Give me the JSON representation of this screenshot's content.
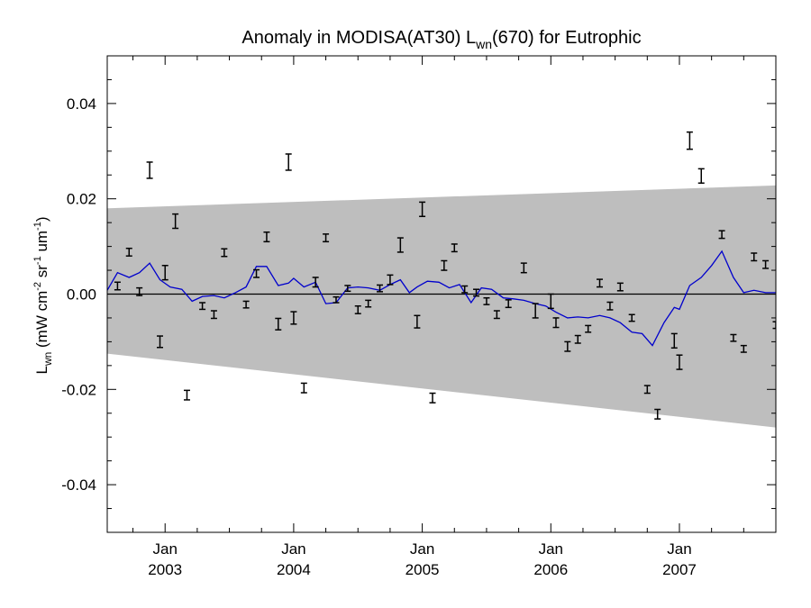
{
  "chart_data": {
    "type": "scatter",
    "title": {
      "prefix": "Anomaly in MODISA(AT30) L",
      "sub": "wn",
      "suffix": "(670) for Eutrophic"
    },
    "ylabel": {
      "main": "L",
      "sub": "wn",
      "units_open": " (mW cm",
      "sup1": "-2",
      "units_mid": " sr",
      "sup2": "-1",
      "units_mid2": " um",
      "sup3": "-1",
      "units_close": ")"
    },
    "xlim": [
      2002.55,
      2007.75
    ],
    "ylim": [
      -0.05,
      0.05
    ],
    "grid": false,
    "y_ticks": [
      {
        "value": -0.04,
        "label": "-0.04"
      },
      {
        "value": -0.02,
        "label": "-0.02"
      },
      {
        "value": 0.0,
        "label": "0.00"
      },
      {
        "value": 0.02,
        "label": "0.02"
      },
      {
        "value": 0.04,
        "label": "0.04"
      }
    ],
    "x_ticks": [
      {
        "value": 2003.0,
        "month": "Jan",
        "year": "2003"
      },
      {
        "value": 2004.0,
        "month": "Jan",
        "year": "2004"
      },
      {
        "value": 2005.0,
        "month": "Jan",
        "year": "2005"
      },
      {
        "value": 2006.0,
        "month": "Jan",
        "year": "2006"
      },
      {
        "value": 2007.0,
        "month": "Jan",
        "year": "2007"
      }
    ],
    "band": {
      "fill": "#bebebe",
      "upper": [
        [
          2002.55,
          0.018
        ],
        [
          2007.75,
          0.0228
        ]
      ],
      "lower": [
        [
          2002.55,
          -0.0125
        ],
        [
          2007.75,
          -0.028
        ]
      ]
    },
    "zero_line": 0.0,
    "line_color": "#0000cc",
    "errorbar_color": "#000000",
    "smoothed": [
      [
        2002.55,
        0.0008
      ],
      [
        2002.63,
        0.0045
      ],
      [
        2002.72,
        0.0035
      ],
      [
        2002.8,
        0.0045
      ],
      [
        2002.88,
        0.0065
      ],
      [
        2002.96,
        0.003
      ],
      [
        2003.04,
        0.0015
      ],
      [
        2003.13,
        0.001
      ],
      [
        2003.21,
        -0.0015
      ],
      [
        2003.29,
        -0.0005
      ],
      [
        2003.38,
        -0.0003
      ],
      [
        2003.46,
        -0.0008
      ],
      [
        2003.54,
        0.0002
      ],
      [
        2003.63,
        0.0015
      ],
      [
        2003.71,
        0.0058
      ],
      [
        2003.79,
        0.0058
      ],
      [
        2003.88,
        0.0018
      ],
      [
        2003.96,
        0.0023
      ],
      [
        2004.0,
        0.0033
      ],
      [
        2004.08,
        0.0015
      ],
      [
        2004.17,
        0.0025
      ],
      [
        2004.25,
        -0.002
      ],
      [
        2004.33,
        -0.0018
      ],
      [
        2004.42,
        0.0013
      ],
      [
        2004.5,
        0.0015
      ],
      [
        2004.58,
        0.0013
      ],
      [
        2004.67,
        0.0008
      ],
      [
        2004.75,
        0.002
      ],
      [
        2004.83,
        0.003
      ],
      [
        2004.9,
        0.0003
      ],
      [
        2004.96,
        0.0015
      ],
      [
        2005.04,
        0.0027
      ],
      [
        2005.13,
        0.0025
      ],
      [
        2005.21,
        0.0013
      ],
      [
        2005.29,
        0.002
      ],
      [
        2005.38,
        -0.0018
      ],
      [
        2005.46,
        0.0013
      ],
      [
        2005.54,
        0.001
      ],
      [
        2005.63,
        -0.0008
      ],
      [
        2005.71,
        -0.001
      ],
      [
        2005.79,
        -0.0013
      ],
      [
        2005.88,
        -0.002
      ],
      [
        2005.96,
        -0.0025
      ],
      [
        2006.04,
        -0.0038
      ],
      [
        2006.13,
        -0.005
      ],
      [
        2006.21,
        -0.0048
      ],
      [
        2006.29,
        -0.005
      ],
      [
        2006.38,
        -0.0045
      ],
      [
        2006.46,
        -0.005
      ],
      [
        2006.54,
        -0.006
      ],
      [
        2006.63,
        -0.008
      ],
      [
        2006.71,
        -0.0083
      ],
      [
        2006.79,
        -0.0108
      ],
      [
        2006.88,
        -0.006
      ],
      [
        2006.96,
        -0.0028
      ],
      [
        2007.0,
        -0.0032
      ],
      [
        2007.08,
        0.0018
      ],
      [
        2007.17,
        0.0035
      ],
      [
        2007.25,
        0.006
      ],
      [
        2007.33,
        0.009
      ],
      [
        2007.42,
        0.0035
      ],
      [
        2007.5,
        0.0003
      ],
      [
        2007.58,
        0.0008
      ],
      [
        2007.67,
        0.0003
      ],
      [
        2007.75,
        0.0003
      ]
    ],
    "errorbars": [
      {
        "x": 2002.63,
        "y": 0.0017,
        "err": 0.0008
      },
      {
        "x": 2002.72,
        "y": 0.0088,
        "err": 0.0008
      },
      {
        "x": 2002.8,
        "y": 0.0005,
        "err": 0.0008
      },
      {
        "x": 2002.88,
        "y": 0.026,
        "err": 0.0017
      },
      {
        "x": 2002.96,
        "y": -0.01,
        "err": 0.0012
      },
      {
        "x": 2003.0,
        "y": 0.0045,
        "err": 0.0015
      },
      {
        "x": 2003.08,
        "y": 0.0153,
        "err": 0.0015
      },
      {
        "x": 2003.17,
        "y": -0.0212,
        "err": 0.001
      },
      {
        "x": 2003.29,
        "y": -0.0025,
        "err": 0.0007
      },
      {
        "x": 2003.38,
        "y": -0.0043,
        "err": 0.0008
      },
      {
        "x": 2003.46,
        "y": 0.0087,
        "err": 0.0008
      },
      {
        "x": 2003.63,
        "y": -0.0022,
        "err": 0.0007
      },
      {
        "x": 2003.71,
        "y": 0.0043,
        "err": 0.0008
      },
      {
        "x": 2003.79,
        "y": 0.012,
        "err": 0.001
      },
      {
        "x": 2003.88,
        "y": -0.0063,
        "err": 0.0012
      },
      {
        "x": 2003.96,
        "y": 0.0277,
        "err": 0.0017
      },
      {
        "x": 2004.0,
        "y": -0.005,
        "err": 0.0013
      },
      {
        "x": 2004.08,
        "y": -0.0197,
        "err": 0.001
      },
      {
        "x": 2004.17,
        "y": 0.0025,
        "err": 0.001
      },
      {
        "x": 2004.25,
        "y": 0.0118,
        "err": 0.0008
      },
      {
        "x": 2004.33,
        "y": -0.0012,
        "err": 0.0006
      },
      {
        "x": 2004.42,
        "y": 0.0012,
        "err": 0.0006
      },
      {
        "x": 2004.5,
        "y": -0.0033,
        "err": 0.0008
      },
      {
        "x": 2004.58,
        "y": -0.002,
        "err": 0.0007
      },
      {
        "x": 2004.67,
        "y": 0.0012,
        "err": 0.0007
      },
      {
        "x": 2004.75,
        "y": 0.003,
        "err": 0.001
      },
      {
        "x": 2004.83,
        "y": 0.0103,
        "err": 0.0015
      },
      {
        "x": 2004.96,
        "y": -0.0058,
        "err": 0.0013
      },
      {
        "x": 2005.0,
        "y": 0.0178,
        "err": 0.0015
      },
      {
        "x": 2005.08,
        "y": -0.0218,
        "err": 0.001
      },
      {
        "x": 2005.17,
        "y": 0.006,
        "err": 0.001
      },
      {
        "x": 2005.25,
        "y": 0.0097,
        "err": 0.0008
      },
      {
        "x": 2005.33,
        "y": 0.001,
        "err": 0.0007
      },
      {
        "x": 2005.42,
        "y": 0.0003,
        "err": 0.0007
      },
      {
        "x": 2005.5,
        "y": -0.0015,
        "err": 0.0007
      },
      {
        "x": 2005.58,
        "y": -0.0043,
        "err": 0.0008
      },
      {
        "x": 2005.67,
        "y": -0.002,
        "err": 0.0008
      },
      {
        "x": 2005.79,
        "y": 0.0055,
        "err": 0.001
      },
      {
        "x": 2005.88,
        "y": -0.0035,
        "err": 0.0015
      },
      {
        "x": 2006.0,
        "y": -0.0015,
        "err": 0.0015
      },
      {
        "x": 2006.04,
        "y": -0.006,
        "err": 0.001
      },
      {
        "x": 2006.13,
        "y": -0.011,
        "err": 0.001
      },
      {
        "x": 2006.21,
        "y": -0.0095,
        "err": 0.0008
      },
      {
        "x": 2006.29,
        "y": -0.0073,
        "err": 0.0007
      },
      {
        "x": 2006.38,
        "y": 0.0023,
        "err": 0.0008
      },
      {
        "x": 2006.46,
        "y": -0.0025,
        "err": 0.0008
      },
      {
        "x": 2006.54,
        "y": 0.0015,
        "err": 0.0008
      },
      {
        "x": 2006.63,
        "y": -0.005,
        "err": 0.0007
      },
      {
        "x": 2006.75,
        "y": -0.02,
        "err": 0.0008
      },
      {
        "x": 2006.83,
        "y": -0.0252,
        "err": 0.001
      },
      {
        "x": 2006.96,
        "y": -0.0098,
        "err": 0.0015
      },
      {
        "x": 2007.0,
        "y": -0.0143,
        "err": 0.0015
      },
      {
        "x": 2007.08,
        "y": 0.0322,
        "err": 0.0018
      },
      {
        "x": 2007.17,
        "y": 0.0248,
        "err": 0.0015
      },
      {
        "x": 2007.33,
        "y": 0.0125,
        "err": 0.0008
      },
      {
        "x": 2007.42,
        "y": -0.0092,
        "err": 0.0007
      },
      {
        "x": 2007.5,
        "y": -0.0115,
        "err": 0.0007
      },
      {
        "x": 2007.58,
        "y": 0.0078,
        "err": 0.0008
      },
      {
        "x": 2007.67,
        "y": 0.0062,
        "err": 0.0008
      },
      {
        "x": 2007.75,
        "y": -0.0065,
        "err": 0.0007
      }
    ]
  }
}
